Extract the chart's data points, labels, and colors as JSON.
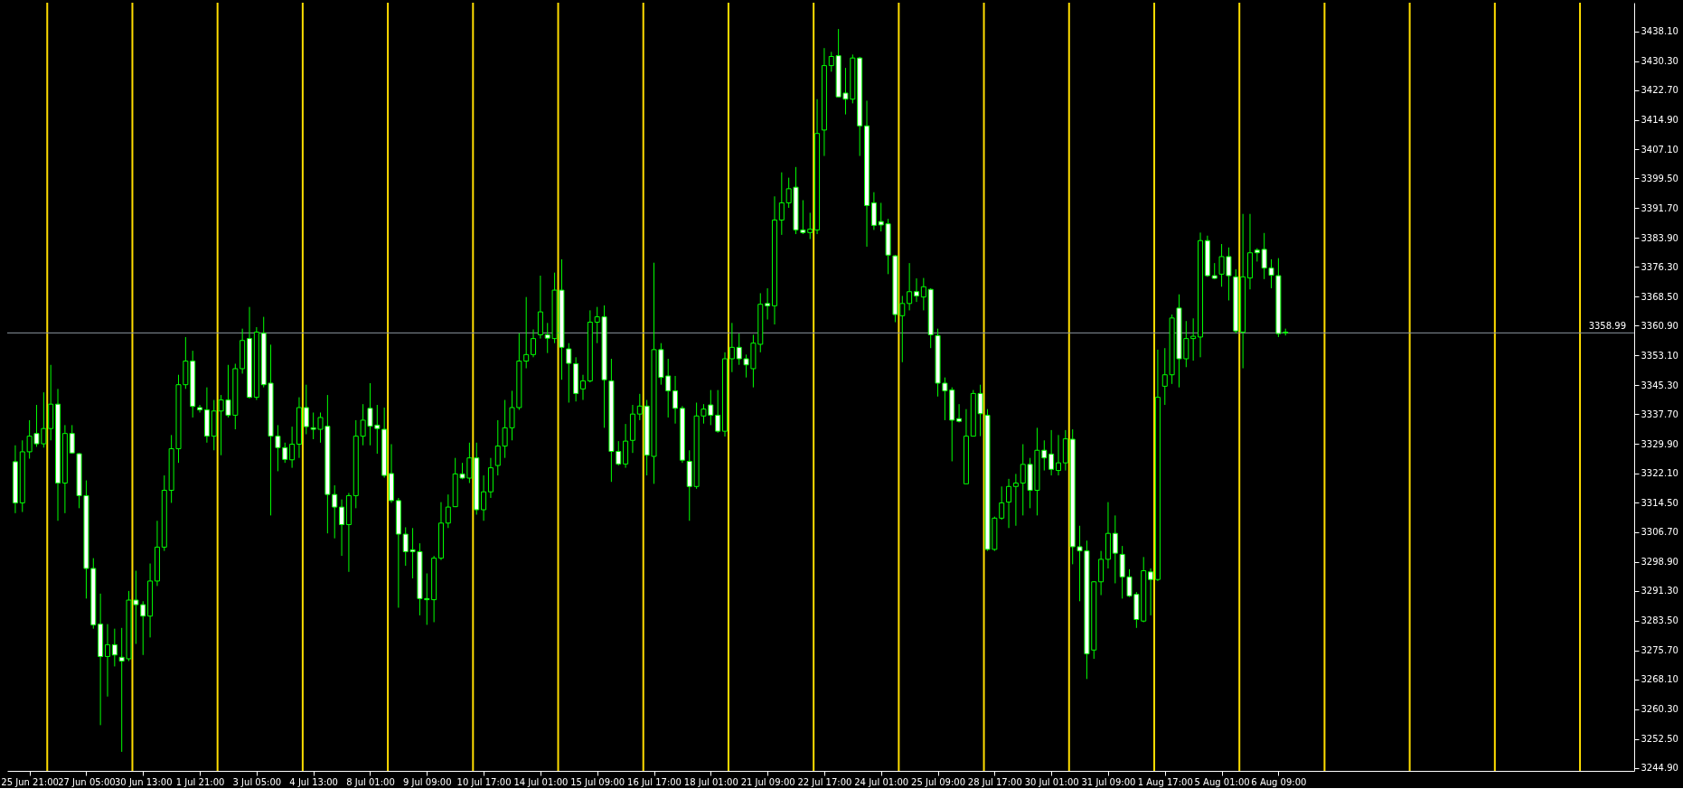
{
  "chart_data": {
    "type": "candlestick",
    "color": "#00ff00",
    "categories": [
      null,
      null,
      "25 Jun 21:00",
      null,
      null,
      null,
      null,
      null,
      null,
      null,
      "27 Jun 05:00",
      null,
      null,
      null,
      null,
      null,
      null,
      null,
      "30 Jun 13:00",
      null,
      null,
      null,
      null,
      null,
      null,
      null,
      "1 Jul 21:00",
      null,
      null,
      null,
      null,
      null,
      null,
      null,
      "3 Jul 05:00",
      null,
      null,
      null,
      null,
      null,
      null,
      null,
      "4 Jul 13:00",
      null,
      null,
      null,
      null,
      null,
      null,
      null,
      "8 Jul 01:00",
      null,
      null,
      null,
      null,
      null,
      null,
      null,
      "9 Jul 09:00",
      null,
      null,
      null,
      null,
      null,
      null,
      null,
      "10 Jul 17:00",
      null,
      null,
      null,
      null,
      null,
      null,
      null,
      "14 Jul 01:00",
      null,
      null,
      null,
      null,
      null,
      null,
      null,
      "15 Jul 09:00",
      null,
      null,
      null,
      null,
      null,
      null,
      null,
      "16 Jul 17:00",
      null,
      null,
      null,
      null,
      null,
      null,
      null,
      "18 Jul 01:00",
      null,
      null,
      null,
      null,
      null,
      null,
      null,
      "21 Jul 09:00",
      null,
      null,
      null,
      null,
      null,
      null,
      null,
      "22 Jul 17:00",
      null,
      null,
      null,
      null,
      null,
      null,
      null,
      "24 Jul 01:00",
      null,
      null,
      null,
      null,
      null,
      null,
      null,
      "25 Jul 09:00",
      null,
      null,
      null,
      null,
      null,
      null,
      null,
      "28 Jul 17:00",
      null,
      null,
      null,
      null,
      null,
      null,
      null,
      "30 Jul 01:00",
      null,
      null,
      null,
      null,
      null,
      null,
      null,
      "31 Jul 09:00",
      null,
      null,
      null,
      null,
      null,
      null,
      null,
      "1 Aug 17:00",
      null,
      null,
      null,
      null,
      null,
      null,
      null,
      "5 Aug 01:00",
      null,
      null,
      null,
      null,
      null,
      null,
      null,
      "6 Aug 09:00",
      null,
      null,
      null,
      null,
      null,
      null,
      null,
      null,
      null,
      null,
      null,
      null,
      null,
      null,
      null,
      null,
      null,
      null,
      null,
      null,
      null,
      null,
      null,
      null,
      null,
      null,
      null,
      null,
      null,
      null,
      null,
      null,
      null,
      null,
      null,
      null,
      null,
      null,
      null,
      null,
      null,
      null,
      null,
      null,
      null,
      null,
      null,
      null,
      null
    ],
    "ohlc": [
      [
        3325.2,
        3329.5,
        3311.7,
        3314.4
      ],
      [
        3314.4,
        3330.8,
        3312.0,
        3327.8
      ],
      [
        3327.8,
        3336.1,
        3326.0,
        3331.9
      ],
      [
        3332.6,
        3340.1,
        3329.1,
        3329.9
      ],
      [
        3329.9,
        3343.4,
        3328.9,
        3333.9
      ],
      [
        3333.9,
        3350.6,
        3330.8,
        3340.3
      ],
      [
        3340.3,
        3344.3,
        3309.7,
        3319.6
      ],
      [
        3319.6,
        3334.8,
        3311.7,
        3332.6
      ],
      [
        3332.6,
        3334.8,
        3327.3,
        3327.5
      ],
      [
        3327.3,
        3327.5,
        3313.0,
        3316.3
      ],
      [
        3316.3,
        3320.3,
        3289.3,
        3297.2
      ],
      [
        3297.2,
        3299.9,
        3281.4,
        3282.4
      ],
      [
        3282.6,
        3290.6,
        3256.1,
        3274.1
      ],
      [
        3274.1,
        3282.6,
        3263.6,
        3277.2
      ],
      [
        3277.2,
        3281.4,
        3271.5,
        3274.5
      ],
      [
        3273.9,
        3281.6,
        3249.1,
        3272.9
      ],
      [
        3273.5,
        3291.3,
        3272.9,
        3288.9
      ],
      [
        3288.9,
        3296.6,
        3277.4,
        3287.7
      ],
      [
        3287.7,
        3288.6,
        3274.5,
        3284.7
      ],
      [
        3284.7,
        3298.5,
        3279.1,
        3293.9
      ],
      [
        3293.9,
        3309.7,
        3292.6,
        3302.8
      ],
      [
        3302.8,
        3321.6,
        3301.8,
        3317.7
      ],
      [
        3317.7,
        3332.2,
        3314.4,
        3328.6
      ],
      [
        3328.6,
        3348.0,
        3324.9,
        3345.4
      ],
      [
        3345.4,
        3357.9,
        3344.3,
        3351.6
      ],
      [
        3351.6,
        3354.3,
        3336.8,
        3339.7
      ],
      [
        3339.4,
        3340.1,
        3338.1,
        3338.8
      ],
      [
        3338.8,
        3344.7,
        3330.2,
        3331.9
      ],
      [
        3331.9,
        3341.4,
        3328.2,
        3338.5
      ],
      [
        3338.5,
        3342.7,
        3326.9,
        3341.4
      ],
      [
        3341.4,
        3350.6,
        3336.8,
        3337.4
      ],
      [
        3337.4,
        3350.9,
        3333.7,
        3349.6
      ],
      [
        3349.6,
        3360.1,
        3348.3,
        3357.0
      ],
      [
        3357.5,
        3365.8,
        3341.8,
        3342.1
      ],
      [
        3342.1,
        3360.5,
        3341.4,
        3359.2
      ],
      [
        3358.9,
        3363.2,
        3344.7,
        3345.4
      ],
      [
        3345.8,
        3355.9,
        3311.1,
        3331.9
      ],
      [
        3331.9,
        3334.8,
        3322.7,
        3328.9
      ],
      [
        3328.9,
        3330.2,
        3324.9,
        3325.8
      ],
      [
        3325.7,
        3334.4,
        3323.6,
        3329.8
      ],
      [
        3329.8,
        3342.1,
        3326.2,
        3339.4
      ],
      [
        3339.4,
        3345.4,
        3332.4,
        3334.4
      ],
      [
        3334.1,
        3338.1,
        3331.1,
        3333.7
      ],
      [
        3333.7,
        3338.1,
        3330.2,
        3336.8
      ],
      [
        3334.5,
        3342.7,
        3306.4,
        3316.6
      ],
      [
        3316.6,
        3319.0,
        3305.1,
        3313.3
      ],
      [
        3313.3,
        3315.3,
        3300.5,
        3308.7
      ],
      [
        3308.7,
        3317.0,
        3296.3,
        3316.3
      ],
      [
        3316.3,
        3336.1,
        3313.0,
        3331.9
      ],
      [
        3331.9,
        3340.3,
        3329.5,
        3336.1
      ],
      [
        3339.2,
        3345.8,
        3329.5,
        3334.5
      ],
      [
        3334.8,
        3340.1,
        3327.3,
        3333.9
      ],
      [
        3333.7,
        3339.4,
        3321.0,
        3321.6
      ],
      [
        3322.1,
        3329.8,
        3314.4,
        3315.0
      ],
      [
        3315.0,
        3315.7,
        3286.9,
        3306.2
      ],
      [
        3306.2,
        3308.0,
        3297.9,
        3301.6
      ],
      [
        3302.1,
        3307.8,
        3294.6,
        3301.6
      ],
      [
        3301.6,
        3303.8,
        3284.9,
        3289.3
      ],
      [
        3289.3,
        3295.9,
        3282.4,
        3289.0
      ],
      [
        3289.0,
        3300.5,
        3283.1,
        3299.9
      ],
      [
        3299.9,
        3314.6,
        3299.4,
        3309.1
      ],
      [
        3309.1,
        3316.6,
        3307.8,
        3313.3
      ],
      [
        3313.4,
        3326.2,
        3313.3,
        3322.0
      ],
      [
        3322.0,
        3324.9,
        3320.6,
        3320.9
      ],
      [
        3320.9,
        3330.2,
        3319.6,
        3326.2
      ],
      [
        3326.2,
        3330.2,
        3311.3,
        3312.6
      ],
      [
        3312.6,
        3321.6,
        3309.7,
        3317.3
      ],
      [
        3317.3,
        3326.2,
        3315.7,
        3323.6
      ],
      [
        3324.2,
        3336.1,
        3321.6,
        3329.3
      ],
      [
        3329.3,
        3341.4,
        3326.2,
        3334.1
      ],
      [
        3334.1,
        3343.8,
        3330.8,
        3339.4
      ],
      [
        3339.4,
        3358.9,
        3338.8,
        3351.6
      ],
      [
        3351.6,
        3368.4,
        3349.7,
        3353.3
      ],
      [
        3353.3,
        3359.9,
        3352.6,
        3357.5
      ],
      [
        3358.5,
        3374.0,
        3357.5,
        3364.5
      ],
      [
        3358.5,
        3361.6,
        3353.7,
        3357.6
      ],
      [
        3357.5,
        3374.8,
        3356.3,
        3370.2
      ],
      [
        3370.2,
        3378.3,
        3346.7,
        3355.2
      ],
      [
        3354.8,
        3356.3,
        3340.7,
        3351.0
      ],
      [
        3350.9,
        3352.6,
        3341.0,
        3343.1
      ],
      [
        3344.3,
        3348.0,
        3341.4,
        3346.4
      ],
      [
        3346.4,
        3364.9,
        3346.0,
        3361.8
      ],
      [
        3361.8,
        3365.8,
        3356.3,
        3363.2
      ],
      [
        3363.2,
        3366.2,
        3334.1,
        3346.7
      ],
      [
        3346.4,
        3352.2,
        3319.9,
        3327.9
      ],
      [
        3327.9,
        3330.6,
        3324.2,
        3324.6
      ],
      [
        3324.6,
        3335.1,
        3323.6,
        3330.6
      ],
      [
        3330.8,
        3340.1,
        3327.5,
        3337.7
      ],
      [
        3337.7,
        3343.0,
        3336.1,
        3339.8
      ],
      [
        3339.8,
        3341.4,
        3321.6,
        3326.9
      ],
      [
        3326.6,
        3377.4,
        3319.4,
        3354.6
      ],
      [
        3354.6,
        3356.3,
        3345.4,
        3347.3
      ],
      [
        3347.7,
        3352.2,
        3336.8,
        3343.8
      ],
      [
        3343.8,
        3347.7,
        3335.2,
        3339.2
      ],
      [
        3339.2,
        3339.8,
        3324.9,
        3325.6
      ],
      [
        3325.3,
        3328.2,
        3309.7,
        3318.7
      ],
      [
        3318.7,
        3340.7,
        3318.1,
        3337.2
      ],
      [
        3337.2,
        3340.3,
        3335.2,
        3339.0
      ],
      [
        3340.1,
        3344.0,
        3334.8,
        3337.4
      ],
      [
        3337.4,
        3344.0,
        3332.8,
        3333.2
      ],
      [
        3333.2,
        3353.9,
        3331.8,
        3352.2
      ],
      [
        3352.2,
        3361.6,
        3348.7,
        3355.2
      ],
      [
        3355.2,
        3358.8,
        3350.6,
        3352.2
      ],
      [
        3352.2,
        3353.3,
        3347.3,
        3350.6
      ],
      [
        3349.6,
        3358.5,
        3344.7,
        3356.3
      ],
      [
        3356.0,
        3369.4,
        3353.9,
        3366.5
      ],
      [
        3366.7,
        3370.7,
        3362.5,
        3366.1
      ],
      [
        3366.1,
        3394.8,
        3361.2,
        3388.6
      ],
      [
        3388.6,
        3401.1,
        3384.7,
        3393.1
      ],
      [
        3393.1,
        3399.7,
        3391.8,
        3396.8
      ],
      [
        3397.2,
        3402.5,
        3384.9,
        3386.0
      ],
      [
        3386.0,
        3393.8,
        3384.9,
        3385.3
      ],
      [
        3385.3,
        3390.5,
        3383.6,
        3386.2
      ],
      [
        3386.0,
        3420.3,
        3384.9,
        3411.3
      ],
      [
        3412.2,
        3433.7,
        3405.4,
        3429.1
      ],
      [
        3429.1,
        3432.7,
        3427.5,
        3431.5
      ],
      [
        3431.7,
        3438.7,
        3420.9,
        3420.9
      ],
      [
        3421.9,
        3428.5,
        3416.3,
        3420.3
      ],
      [
        3420.3,
        3432.0,
        3419.2,
        3431.1
      ],
      [
        3431.1,
        3431.4,
        3405.4,
        3413.3
      ],
      [
        3413.3,
        3419.9,
        3381.6,
        3392.4
      ],
      [
        3393.1,
        3395.9,
        3386.0,
        3387.2
      ],
      [
        3388.2,
        3393.1,
        3385.6,
        3387.3
      ],
      [
        3387.6,
        3388.9,
        3374.4,
        3379.4
      ],
      [
        3379.2,
        3379.4,
        3361.8,
        3363.8
      ],
      [
        3363.5,
        3368.7,
        3351.3,
        3366.7
      ],
      [
        3366.7,
        3377.3,
        3364.9,
        3369.8
      ],
      [
        3369.8,
        3373.3,
        3367.1,
        3368.7
      ],
      [
        3368.4,
        3373.4,
        3364.9,
        3371.1
      ],
      [
        3370.4,
        3370.7,
        3355.0,
        3358.5
      ],
      [
        3358.3,
        3360.1,
        3342.3,
        3345.8
      ],
      [
        3345.8,
        3347.3,
        3336.1,
        3343.8
      ],
      [
        3344.0,
        3344.7,
        3325.3,
        3336.1
      ],
      [
        3336.5,
        3340.3,
        3335.5,
        3335.8
      ],
      [
        3319.4,
        3339.0,
        3319.4,
        3331.9
      ],
      [
        3331.9,
        3344.0,
        3331.9,
        3343.1
      ],
      [
        3343.1,
        3345.4,
        3331.9,
        3337.8
      ],
      [
        3337.4,
        3339.0,
        3301.8,
        3302.2
      ],
      [
        3302.2,
        3310.8,
        3301.8,
        3310.4
      ],
      [
        3310.4,
        3318.7,
        3310.0,
        3314.4
      ],
      [
        3314.6,
        3320.7,
        3307.8,
        3318.7
      ],
      [
        3318.7,
        3322.0,
        3308.4,
        3319.6
      ],
      [
        3319.6,
        3329.8,
        3311.1,
        3324.5
      ],
      [
        3324.5,
        3326.2,
        3313.0,
        3317.7
      ],
      [
        3317.7,
        3334.1,
        3311.1,
        3328.2
      ],
      [
        3328.2,
        3330.8,
        3322.9,
        3326.2
      ],
      [
        3327.2,
        3333.5,
        3321.6,
        3323.2
      ],
      [
        3322.9,
        3332.2,
        3321.6,
        3324.9
      ],
      [
        3324.9,
        3333.5,
        3322.9,
        3331.2
      ],
      [
        3331.1,
        3333.7,
        3298.3,
        3302.9
      ],
      [
        3302.9,
        3308.4,
        3288.6,
        3301.8
      ],
      [
        3301.8,
        3304.5,
        3268.2,
        3274.8
      ],
      [
        3275.8,
        3293.9,
        3273.5,
        3293.7
      ],
      [
        3293.7,
        3301.8,
        3290.2,
        3299.6
      ],
      [
        3299.6,
        3314.6,
        3297.2,
        3306.4
      ],
      [
        3306.4,
        3311.1,
        3293.3,
        3301.2
      ],
      [
        3300.9,
        3303.1,
        3289.3,
        3295.0
      ],
      [
        3295.0,
        3297.0,
        3289.7,
        3290.0
      ],
      [
        3290.4,
        3291.0,
        3281.6,
        3283.8
      ],
      [
        3283.4,
        3300.2,
        3283.1,
        3296.6
      ],
      [
        3296.3,
        3297.2,
        3284.9,
        3294.3
      ],
      [
        3294.3,
        3354.6,
        3293.9,
        3342.1
      ],
      [
        3345.0,
        3355.0,
        3340.1,
        3348.0
      ],
      [
        3348.0,
        3363.8,
        3345.6,
        3362.9
      ],
      [
        3365.5,
        3369.1,
        3344.7,
        3352.2
      ],
      [
        3352.2,
        3362.1,
        3350.0,
        3357.5
      ],
      [
        3357.5,
        3362.8,
        3351.7,
        3358.1
      ],
      [
        3357.9,
        3385.3,
        3352.6,
        3383.2
      ],
      [
        3383.2,
        3384.5,
        3373.7,
        3374.0
      ],
      [
        3374.0,
        3377.3,
        3373.1,
        3373.3
      ],
      [
        3374.4,
        3382.3,
        3371.1,
        3379.0
      ],
      [
        3379.0,
        3381.4,
        3367.5,
        3374.0
      ],
      [
        3373.7,
        3375.7,
        3358.9,
        3359.5
      ],
      [
        3359.2,
        3390.2,
        3349.7,
        3373.7
      ],
      [
        3373.4,
        3390.2,
        3370.4,
        3380.0
      ],
      [
        3380.7,
        3381.2,
        3377.7,
        3380.0
      ],
      [
        3380.9,
        3385.2,
        3373.1,
        3376.0
      ],
      [
        3376.0,
        3378.3,
        3370.7,
        3374.1
      ],
      [
        3374.0,
        3378.6,
        3357.9,
        3358.8
      ],
      [
        3359.2,
        3360.1,
        3358.3,
        3358.99
      ],
      null,
      null,
      null,
      null,
      null,
      null,
      null,
      null,
      null,
      null,
      null,
      null,
      null,
      null,
      null,
      null,
      null,
      null,
      null,
      null,
      null,
      null,
      null,
      null,
      null,
      null,
      null,
      null,
      null,
      null,
      null,
      null,
      null,
      null,
      null,
      null,
      null,
      null,
      null,
      null,
      null,
      null,
      null,
      null,
      null,
      null,
      null,
      null
    ],
    "ylim": [
      3244.1,
      3445.6
    ],
    "yticks": [
      {
        "value": 3244.9,
        "label": "3244.90"
      },
      {
        "value": 3252.5,
        "label": "3252.50"
      },
      {
        "value": 3260.3,
        "label": "3260.30"
      },
      {
        "value": 3268.1,
        "label": "3268.10"
      },
      {
        "value": 3275.7,
        "label": "3275.70"
      },
      {
        "value": 3283.5,
        "label": "3283.50"
      },
      {
        "value": 3291.3,
        "label": "3291.30"
      },
      {
        "value": 3298.9,
        "label": "3298.90"
      },
      {
        "value": 3306.7,
        "label": "3306.70"
      },
      {
        "value": 3314.5,
        "label": "3314.50"
      },
      {
        "value": 3322.1,
        "label": "3322.10"
      },
      {
        "value": 3329.9,
        "label": "3329.90"
      },
      {
        "value": 3337.7,
        "label": "3337.70"
      },
      {
        "value": 3345.3,
        "label": "3345.30"
      },
      {
        "value": 3353.1,
        "label": "3353.10"
      },
      {
        "value": 3360.9,
        "label": "3360.90"
      },
      {
        "value": 3368.5,
        "label": "3368.50"
      },
      {
        "value": 3376.3,
        "label": "3376.30"
      },
      {
        "value": 3383.9,
        "label": "3383.90"
      },
      {
        "value": 3391.7,
        "label": "3391.70"
      },
      {
        "value": 3399.5,
        "label": "3399.50"
      },
      {
        "value": 3407.1,
        "label": "3407.10"
      },
      {
        "value": 3414.9,
        "label": "3414.90"
      },
      {
        "value": 3422.7,
        "label": "3422.70"
      },
      {
        "value": 3430.3,
        "label": "3430.30"
      },
      {
        "value": 3438.1,
        "label": "3438.10"
      }
    ],
    "ref_lines": [
      {
        "axis": "y",
        "value": 3358.99,
        "label": "3358.99",
        "color": "#8c96a0"
      }
    ]
  }
}
